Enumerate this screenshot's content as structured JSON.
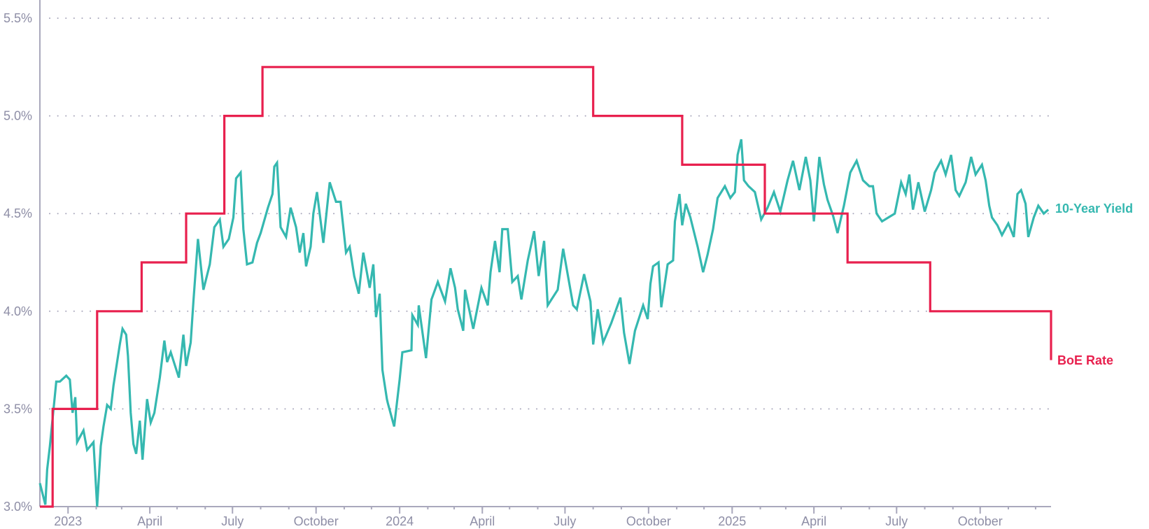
{
  "chart_data": {
    "type": "line",
    "title": "",
    "xlabel": "",
    "ylabel": "",
    "xlim": [
      "2022-12-01",
      "2025-12-18"
    ],
    "ylim": [
      3.0,
      5.5
    ],
    "y_ticks": [
      3.0,
      3.5,
      4.0,
      4.5,
      5.0,
      5.5
    ],
    "y_tick_labels": [
      "3.0%",
      "3.5%",
      "4.0%",
      "4.5%",
      "5.0%",
      "5.5%"
    ],
    "x_ticks": [
      {
        "date": "2023-01-01",
        "label": "2023"
      },
      {
        "date": "2023-04-01",
        "label": "April"
      },
      {
        "date": "2023-07-01",
        "label": "July"
      },
      {
        "date": "2023-10-01",
        "label": "October"
      },
      {
        "date": "2024-01-01",
        "label": "2024"
      },
      {
        "date": "2024-04-01",
        "label": "April"
      },
      {
        "date": "2024-07-01",
        "label": "July"
      },
      {
        "date": "2024-10-01",
        "label": "October"
      },
      {
        "date": "2025-01-01",
        "label": "2025"
      },
      {
        "date": "2025-04-01",
        "label": "April"
      },
      {
        "date": "2025-07-01",
        "label": "July"
      },
      {
        "date": "2025-10-01",
        "label": "October"
      }
    ],
    "grid": "horizontal dotted",
    "legend": "direct labels at line ends (right)",
    "series": [
      {
        "name": "10-Year Yield",
        "color": "#35b8b0",
        "step": false,
        "points": [
          [
            "2022-12-01",
            3.12
          ],
          [
            "2022-12-07",
            3.01
          ],
          [
            "2022-12-09",
            3.19
          ],
          [
            "2022-12-12",
            3.31
          ],
          [
            "2022-12-19",
            3.64
          ],
          [
            "2022-12-23",
            3.64
          ],
          [
            "2022-12-30",
            3.67
          ],
          [
            "2023-01-03",
            3.65
          ],
          [
            "2023-01-06",
            3.48
          ],
          [
            "2023-01-09",
            3.56
          ],
          [
            "2023-01-11",
            3.33
          ],
          [
            "2023-01-18",
            3.39
          ],
          [
            "2023-01-22",
            3.29
          ],
          [
            "2023-01-29",
            3.33
          ],
          [
            "2023-02-02",
            3.0
          ],
          [
            "2023-02-06",
            3.31
          ],
          [
            "2023-02-09",
            3.41
          ],
          [
            "2023-02-13",
            3.52
          ],
          [
            "2023-02-17",
            3.5
          ],
          [
            "2023-02-20",
            3.62
          ],
          [
            "2023-02-27",
            3.83
          ],
          [
            "2023-03-02",
            3.91
          ],
          [
            "2023-03-06",
            3.88
          ],
          [
            "2023-03-08",
            3.77
          ],
          [
            "2023-03-11",
            3.48
          ],
          [
            "2023-03-14",
            3.32
          ],
          [
            "2023-03-17",
            3.27
          ],
          [
            "2023-03-21",
            3.44
          ],
          [
            "2023-03-24",
            3.24
          ],
          [
            "2023-03-29",
            3.55
          ],
          [
            "2023-04-02",
            3.43
          ],
          [
            "2023-04-06",
            3.48
          ],
          [
            "2023-04-12",
            3.66
          ],
          [
            "2023-04-17",
            3.85
          ],
          [
            "2023-04-20",
            3.74
          ],
          [
            "2023-04-24",
            3.79
          ],
          [
            "2023-05-03",
            3.66
          ],
          [
            "2023-05-08",
            3.88
          ],
          [
            "2023-05-11",
            3.72
          ],
          [
            "2023-05-16",
            3.84
          ],
          [
            "2023-05-19",
            4.05
          ],
          [
            "2023-05-24",
            4.37
          ],
          [
            "2023-05-30",
            4.11
          ],
          [
            "2023-06-06",
            4.24
          ],
          [
            "2023-06-11",
            4.43
          ],
          [
            "2023-06-17",
            4.47
          ],
          [
            "2023-06-21",
            4.33
          ],
          [
            "2023-06-27",
            4.37
          ],
          [
            "2023-07-02",
            4.48
          ],
          [
            "2023-07-05",
            4.68
          ],
          [
            "2023-07-10",
            4.71
          ],
          [
            "2023-07-13",
            4.42
          ],
          [
            "2023-07-17",
            4.24
          ],
          [
            "2023-07-23",
            4.25
          ],
          [
            "2023-07-28",
            4.35
          ],
          [
            "2023-08-01",
            4.4
          ],
          [
            "2023-08-09",
            4.53
          ],
          [
            "2023-08-14",
            4.6
          ],
          [
            "2023-08-16",
            4.74
          ],
          [
            "2023-08-19",
            4.76
          ],
          [
            "2023-08-23",
            4.43
          ],
          [
            "2023-08-29",
            4.38
          ],
          [
            "2023-09-03",
            4.53
          ],
          [
            "2023-09-09",
            4.43
          ],
          [
            "2023-09-13",
            4.3
          ],
          [
            "2023-09-17",
            4.4
          ],
          [
            "2023-09-20",
            4.23
          ],
          [
            "2023-09-25",
            4.33
          ],
          [
            "2023-09-28",
            4.5
          ],
          [
            "2023-10-02",
            4.61
          ],
          [
            "2023-10-09",
            4.35
          ],
          [
            "2023-10-16",
            4.66
          ],
          [
            "2023-10-23",
            4.56
          ],
          [
            "2023-10-28",
            4.56
          ],
          [
            "2023-11-03",
            4.3
          ],
          [
            "2023-11-07",
            4.33
          ],
          [
            "2023-11-12",
            4.18
          ],
          [
            "2023-11-17",
            4.09
          ],
          [
            "2023-11-22",
            4.3
          ],
          [
            "2023-11-29",
            4.12
          ],
          [
            "2023-12-03",
            4.24
          ],
          [
            "2023-12-06",
            3.97
          ],
          [
            "2023-12-10",
            4.09
          ],
          [
            "2023-12-13",
            3.7
          ],
          [
            "2023-12-18",
            3.55
          ],
          [
            "2023-12-19",
            3.53
          ],
          [
            "2023-12-26",
            3.41
          ],
          [
            "2024-01-01",
            3.65
          ],
          [
            "2024-01-04",
            3.79
          ],
          [
            "2024-01-14",
            3.8
          ],
          [
            "2024-01-15",
            3.98
          ],
          [
            "2024-01-21",
            3.93
          ],
          [
            "2024-01-22",
            4.03
          ],
          [
            "2024-01-30",
            3.76
          ],
          [
            "2024-02-05",
            4.06
          ],
          [
            "2024-02-12",
            4.15
          ],
          [
            "2024-02-20",
            4.05
          ],
          [
            "2024-02-26",
            4.22
          ],
          [
            "2024-03-02",
            4.12
          ],
          [
            "2024-03-05",
            4.01
          ],
          [
            "2024-03-11",
            3.9
          ],
          [
            "2024-03-13",
            4.11
          ],
          [
            "2024-03-22",
            3.91
          ],
          [
            "2024-03-31",
            4.12
          ],
          [
            "2024-04-07",
            4.03
          ],
          [
            "2024-04-10",
            4.2
          ],
          [
            "2024-04-15",
            4.36
          ],
          [
            "2024-04-20",
            4.2
          ],
          [
            "2024-04-23",
            4.42
          ],
          [
            "2024-04-29",
            4.42
          ],
          [
            "2024-05-04",
            4.15
          ],
          [
            "2024-05-10",
            4.18
          ],
          [
            "2024-05-14",
            4.06
          ],
          [
            "2024-05-21",
            4.26
          ],
          [
            "2024-05-28",
            4.41
          ],
          [
            "2024-06-02",
            4.18
          ],
          [
            "2024-06-08",
            4.36
          ],
          [
            "2024-06-12",
            4.03
          ],
          [
            "2024-06-23",
            4.11
          ],
          [
            "2024-06-29",
            4.32
          ],
          [
            "2024-07-10",
            4.03
          ],
          [
            "2024-07-14",
            4.01
          ],
          [
            "2024-07-22",
            4.19
          ],
          [
            "2024-07-29",
            4.05
          ],
          [
            "2024-08-01",
            3.83
          ],
          [
            "2024-08-06",
            4.01
          ],
          [
            "2024-08-12",
            3.84
          ],
          [
            "2024-08-21",
            3.94
          ],
          [
            "2024-08-31",
            4.07
          ],
          [
            "2024-09-04",
            3.89
          ],
          [
            "2024-09-10",
            3.73
          ],
          [
            "2024-09-16",
            3.9
          ],
          [
            "2024-09-25",
            4.03
          ],
          [
            "2024-09-30",
            3.96
          ],
          [
            "2024-10-03",
            4.14
          ],
          [
            "2024-10-06",
            4.23
          ],
          [
            "2024-10-12",
            4.25
          ],
          [
            "2024-10-15",
            4.02
          ],
          [
            "2024-10-22",
            4.24
          ],
          [
            "2024-10-28",
            4.26
          ],
          [
            "2024-10-30",
            4.46
          ],
          [
            "2024-11-04",
            4.6
          ],
          [
            "2024-11-07",
            4.44
          ],
          [
            "2024-11-11",
            4.55
          ],
          [
            "2024-11-16",
            4.48
          ],
          [
            "2024-11-24",
            4.33
          ],
          [
            "2024-11-30",
            4.2
          ],
          [
            "2024-12-05",
            4.29
          ],
          [
            "2024-12-11",
            4.42
          ],
          [
            "2024-12-16",
            4.58
          ],
          [
            "2024-12-24",
            4.64
          ],
          [
            "2024-12-30",
            4.58
          ],
          [
            "2025-01-04",
            4.61
          ],
          [
            "2025-01-07",
            4.8
          ],
          [
            "2025-01-11",
            4.88
          ],
          [
            "2025-01-14",
            4.67
          ],
          [
            "2025-01-19",
            4.64
          ],
          [
            "2025-01-26",
            4.61
          ],
          [
            "2025-02-02",
            4.47
          ],
          [
            "2025-02-09",
            4.53
          ],
          [
            "2025-02-16",
            4.61
          ],
          [
            "2025-02-23",
            4.51
          ],
          [
            "2025-03-03",
            4.67
          ],
          [
            "2025-03-09",
            4.77
          ],
          [
            "2025-03-16",
            4.62
          ],
          [
            "2025-03-23",
            4.79
          ],
          [
            "2025-03-28",
            4.67
          ],
          [
            "2025-04-01",
            4.46
          ],
          [
            "2025-04-07",
            4.79
          ],
          [
            "2025-04-12",
            4.65
          ],
          [
            "2025-04-16",
            4.57
          ],
          [
            "2025-04-22",
            4.49
          ],
          [
            "2025-04-27",
            4.4
          ],
          [
            "2025-05-04",
            4.54
          ],
          [
            "2025-05-11",
            4.71
          ],
          [
            "2025-05-18",
            4.77
          ],
          [
            "2025-05-25",
            4.67
          ],
          [
            "2025-06-01",
            4.64
          ],
          [
            "2025-06-05",
            4.64
          ],
          [
            "2025-06-09",
            4.5
          ],
          [
            "2025-06-15",
            4.46
          ],
          [
            "2025-06-22",
            4.48
          ],
          [
            "2025-06-29",
            4.5
          ],
          [
            "2025-07-06",
            4.66
          ],
          [
            "2025-07-11",
            4.6
          ],
          [
            "2025-07-15",
            4.7
          ],
          [
            "2025-07-19",
            4.52
          ],
          [
            "2025-07-25",
            4.66
          ],
          [
            "2025-08-01",
            4.51
          ],
          [
            "2025-08-08",
            4.62
          ],
          [
            "2025-08-12",
            4.71
          ],
          [
            "2025-08-19",
            4.77
          ],
          [
            "2025-08-24",
            4.7
          ],
          [
            "2025-08-30",
            4.8
          ],
          [
            "2025-09-04",
            4.62
          ],
          [
            "2025-09-08",
            4.59
          ],
          [
            "2025-09-15",
            4.66
          ],
          [
            "2025-09-21",
            4.79
          ],
          [
            "2025-09-26",
            4.7
          ],
          [
            "2025-10-03",
            4.75
          ],
          [
            "2025-10-07",
            4.67
          ],
          [
            "2025-10-11",
            4.54
          ],
          [
            "2025-10-14",
            4.48
          ],
          [
            "2025-10-20",
            4.44
          ],
          [
            "2025-10-25",
            4.39
          ],
          [
            "2025-11-01",
            4.45
          ],
          [
            "2025-11-07",
            4.38
          ],
          [
            "2025-11-11",
            4.6
          ],
          [
            "2025-11-15",
            4.62
          ],
          [
            "2025-11-20",
            4.55
          ],
          [
            "2025-11-23",
            4.38
          ],
          [
            "2025-11-29",
            4.48
          ],
          [
            "2025-12-04",
            4.54
          ],
          [
            "2025-12-10",
            4.5
          ],
          [
            "2025-12-15",
            4.52
          ]
        ]
      },
      {
        "name": "BoE Rate",
        "color": "#e8204e",
        "step": true,
        "points": [
          [
            "2022-12-01",
            3.0
          ],
          [
            "2022-12-15",
            3.5
          ],
          [
            "2023-02-02",
            4.0
          ],
          [
            "2023-03-23",
            4.25
          ],
          [
            "2023-05-11",
            4.5
          ],
          [
            "2023-06-22",
            5.0
          ],
          [
            "2023-08-03",
            5.25
          ],
          [
            "2024-08-01",
            5.0
          ],
          [
            "2024-11-07",
            4.75
          ],
          [
            "2025-02-06",
            4.5
          ],
          [
            "2025-05-08",
            4.25
          ],
          [
            "2025-08-07",
            4.0
          ],
          [
            "2025-12-18",
            3.75
          ]
        ]
      }
    ]
  }
}
